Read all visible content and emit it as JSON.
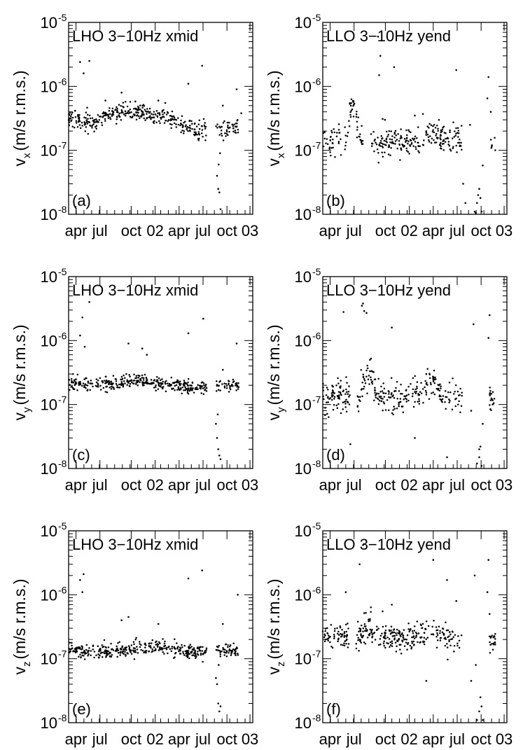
{
  "figure": {
    "x_tick_labels": [
      "apr",
      "jul",
      "oct",
      "02",
      "apr",
      "jul",
      "oct",
      "03"
    ],
    "y_tick_base": "10",
    "y_tick_exponents": [
      "-8",
      "-7",
      "-6",
      "-5"
    ],
    "y_label_main": "v",
    "y_label_units": "(m/s r.m.s.)",
    "colors": {
      "points": "#000000",
      "axes": "#000000",
      "background": "#ffffff"
    }
  },
  "chart_data": [
    {
      "panel": "(a)",
      "type": "scatter",
      "title": "LHO 3−10Hz xmid",
      "component": "x",
      "ylabel": "v_x (m/s r.m.s.)",
      "yscale": "log",
      "ylim": [
        1e-08,
        1e-05
      ],
      "xlabel_ticks": [
        "apr",
        "jul",
        "oct",
        "02",
        "apr",
        "jul",
        "oct",
        "03"
      ],
      "xlim": [
        0,
        8
      ],
      "baseline": [
        [
          0.0,
          3.1e-07
        ],
        [
          0.7,
          2.8e-07
        ],
        [
          1.1,
          2.7e-07
        ],
        [
          1.5,
          3.5e-07
        ],
        [
          2.0,
          4e-07
        ],
        [
          2.5,
          4e-07
        ],
        [
          3.0,
          3.8e-07
        ],
        [
          3.5,
          3.7e-07
        ],
        [
          4.0,
          3.4e-07
        ],
        [
          4.5,
          3e-07
        ],
        [
          5.0,
          2.4e-07
        ],
        [
          5.5,
          2.1e-07
        ],
        [
          6.0,
          2.05e-07
        ],
        [
          6.4,
          2.2e-07
        ],
        [
          7.0,
          2.2e-07
        ],
        [
          7.4,
          2.3e-07
        ]
      ],
      "gaps": [
        [
          6.0,
          6.4
        ]
      ],
      "scatter_factor": 1.25,
      "outliers": [
        [
          0.5,
          2.4e-06
        ],
        [
          0.65,
          1.6e-06
        ],
        [
          0.9,
          2.5e-06
        ],
        [
          1.6,
          6e-07
        ],
        [
          2.3,
          8e-07
        ],
        [
          2.9,
          5.8e-07
        ],
        [
          3.9,
          6e-07
        ],
        [
          4.2,
          5.5e-07
        ],
        [
          5.2,
          1.1e-06
        ],
        [
          5.8,
          2.1e-06
        ],
        [
          6.45,
          4e-08
        ],
        [
          6.5,
          2.5e-08
        ],
        [
          6.55,
          2.2e-08
        ],
        [
          6.6,
          1.2e-08
        ],
        [
          6.52,
          6e-08
        ],
        [
          6.58,
          9e-08
        ],
        [
          6.7,
          5e-07
        ],
        [
          7.3,
          9e-07
        ],
        [
          7.5,
          3.8e-07
        ]
      ]
    },
    {
      "panel": "(b)",
      "type": "scatter",
      "title": "LLO 3−10Hz yend",
      "component": "x",
      "ylabel": "v_x (m/s r.m.s.)",
      "yscale": "log",
      "ylim": [
        1e-08,
        1e-05
      ],
      "xlabel_ticks": [
        "apr",
        "jul",
        "oct",
        "02",
        "apr",
        "jul",
        "oct",
        "03"
      ],
      "xlim": [
        0,
        8
      ],
      "baseline": [
        [
          0.0,
          1.4e-07
        ],
        [
          0.6,
          1.4e-07
        ],
        [
          1.0,
          1.5e-07
        ],
        [
          1.2,
          4.5e-07
        ],
        [
          1.4,
          5e-07
        ],
        [
          1.6,
          1.5e-07
        ],
        [
          2.5,
          1.3e-07
        ],
        [
          3.0,
          1.3e-07
        ],
        [
          3.5,
          1.3e-07
        ],
        [
          4.0,
          1.4e-07
        ],
        [
          4.3,
          1.6e-07
        ],
        [
          4.6,
          2e-07
        ],
        [
          4.9,
          1.6e-07
        ],
        [
          5.5,
          1.5e-07
        ],
        [
          6.0,
          1.4e-07
        ],
        [
          6.5,
          1.6e-07
        ],
        [
          7.5,
          1.1e-07
        ]
      ],
      "gaps": [
        [
          0.8,
          0.95
        ],
        [
          1.75,
          2.1
        ],
        [
          6.05,
          6.6
        ],
        [
          6.6,
          7.3
        ]
      ],
      "scatter_factor": 1.5,
      "outliers": [
        [
          2.4,
          6e-06
        ],
        [
          2.5,
          3e-06
        ],
        [
          2.45,
          1.5e-06
        ],
        [
          2.6,
          3.1e-07
        ],
        [
          2.7,
          3e-07
        ],
        [
          3.1,
          2e-06
        ],
        [
          4.0,
          3.5e-07
        ],
        [
          5.8,
          1.8e-06
        ],
        [
          6.4,
          2.5e-07
        ],
        [
          6.6,
          1.1e-08
        ],
        [
          6.65,
          1.05e-08
        ],
        [
          6.7,
          1.5e-08
        ],
        [
          6.75,
          2e-08
        ],
        [
          6.85,
          1.8e-08
        ],
        [
          6.9,
          1.1e-08
        ],
        [
          6.8,
          2.5e-08
        ],
        [
          6.95,
          5.8e-08
        ],
        [
          7.15,
          6.5e-07
        ],
        [
          7.2,
          1.4e-06
        ],
        [
          7.3,
          4e-07
        ],
        [
          7.35,
          1.2e-07
        ],
        [
          6.1,
          3e-08
        ],
        [
          6.2,
          1.5e-08
        ]
      ]
    },
    {
      "panel": "(c)",
      "type": "scatter",
      "title": "LHO 3−10Hz xmid",
      "component": "y",
      "ylabel": "v_y (m/s r.m.s.)",
      "yscale": "log",
      "ylim": [
        1e-08,
        1e-05
      ],
      "xlabel_ticks": [
        "apr",
        "jul",
        "oct",
        "02",
        "apr",
        "jul",
        "oct",
        "03"
      ],
      "xlim": [
        0,
        8
      ],
      "baseline": [
        [
          0.0,
          2.2e-07
        ],
        [
          0.5,
          2.1e-07
        ],
        [
          1.0,
          2e-07
        ],
        [
          1.5,
          2.1e-07
        ],
        [
          2.0,
          2.2e-07
        ],
        [
          2.5,
          2.3e-07
        ],
        [
          3.0,
          2.4e-07
        ],
        [
          3.5,
          2.3e-07
        ],
        [
          4.0,
          2.1e-07
        ],
        [
          4.5,
          2e-07
        ],
        [
          5.0,
          1.9e-07
        ],
        [
          5.5,
          1.8e-07
        ],
        [
          6.0,
          1.8e-07
        ],
        [
          6.4,
          2e-07
        ],
        [
          7.0,
          2e-07
        ],
        [
          7.4,
          1.9e-07
        ]
      ],
      "gaps": [
        [
          6.0,
          6.35
        ]
      ],
      "scatter_factor": 1.2,
      "outliers": [
        [
          0.5,
          1.2e-06
        ],
        [
          0.6,
          2.3e-06
        ],
        [
          0.9,
          4e-06
        ],
        [
          0.7,
          8e-07
        ],
        [
          2.6,
          9e-07
        ],
        [
          3.2,
          7.5e-07
        ],
        [
          3.4,
          6e-07
        ],
        [
          5.2,
          1.3e-06
        ],
        [
          5.85,
          2.2e-06
        ],
        [
          6.4,
          5e-08
        ],
        [
          6.45,
          3e-08
        ],
        [
          6.5,
          2e-08
        ],
        [
          6.55,
          1.6e-08
        ],
        [
          6.6,
          1.4e-08
        ],
        [
          6.48,
          7e-08
        ],
        [
          7.3,
          9e-07
        ],
        [
          6.7,
          3.5e-07
        ]
      ]
    },
    {
      "panel": "(d)",
      "type": "scatter",
      "title": "LLO 3−10Hz yend",
      "component": "y",
      "ylabel": "v_y (m/s r.m.s.)",
      "yscale": "log",
      "ylim": [
        1e-08,
        1e-05
      ],
      "xlabel_ticks": [
        "apr",
        "jul",
        "oct",
        "02",
        "apr",
        "jul",
        "oct",
        "03"
      ],
      "xlim": [
        0,
        8
      ],
      "baseline": [
        [
          0.0,
          1.3e-07
        ],
        [
          0.5,
          1.4e-07
        ],
        [
          1.0,
          1.3e-07
        ],
        [
          1.5,
          1.2e-07
        ],
        [
          1.9,
          2.5e-07
        ],
        [
          2.1,
          3.5e-07
        ],
        [
          2.3,
          1.5e-07
        ],
        [
          2.8,
          1.2e-07
        ],
        [
          3.5,
          1.3e-07
        ],
        [
          4.0,
          1.4e-07
        ],
        [
          4.5,
          1.8e-07
        ],
        [
          4.8,
          2.4e-07
        ],
        [
          5.0,
          1.7e-07
        ],
        [
          5.5,
          1.4e-07
        ],
        [
          6.0,
          1.4e-07
        ],
        [
          6.5,
          1.5e-07
        ],
        [
          7.5,
          1.2e-07
        ]
      ],
      "gaps": [
        [
          1.2,
          1.5
        ],
        [
          6.05,
          6.6
        ],
        [
          6.6,
          7.25
        ]
      ],
      "scatter_factor": 1.5,
      "outliers": [
        [
          0.9,
          2.8e-06
        ],
        [
          1.2,
          2.4e-08
        ],
        [
          1.7,
          3.5e-06
        ],
        [
          1.8,
          2.9e-06
        ],
        [
          1.9,
          2.7e-06
        ],
        [
          1.75,
          3.8e-06
        ],
        [
          2.05,
          5e-07
        ],
        [
          3.0,
          1.6e-06
        ],
        [
          4.0,
          3e-08
        ],
        [
          4.5,
          3e-07
        ],
        [
          5.4,
          1.5e-08
        ],
        [
          6.55,
          1.8e-06
        ],
        [
          6.65,
          1e-08
        ],
        [
          6.7,
          1.2e-08
        ],
        [
          6.8,
          1.5e-08
        ],
        [
          6.85,
          2.2e-08
        ],
        [
          6.9,
          1.1e-08
        ],
        [
          6.95,
          5e-08
        ],
        [
          7.2,
          1.1e-06
        ],
        [
          7.25,
          2.5e-06
        ],
        [
          6.8,
          2e-08
        ],
        [
          6.45,
          8e-08
        ]
      ]
    },
    {
      "panel": "(e)",
      "type": "scatter",
      "title": "LHO 3−10Hz xmid",
      "component": "z",
      "ylabel": "v_z (m/s r.m.s.)",
      "yscale": "log",
      "ylim": [
        1e-08,
        1e-05
      ],
      "xlabel_ticks": [
        "apr",
        "jul",
        "oct",
        "02",
        "apr",
        "jul",
        "oct",
        "03"
      ],
      "xlim": [
        0,
        8
      ],
      "baseline": [
        [
          0.0,
          1.4e-07
        ],
        [
          0.5,
          1.3e-07
        ],
        [
          1.0,
          1.3e-07
        ],
        [
          1.5,
          1.3e-07
        ],
        [
          2.0,
          1.3e-07
        ],
        [
          2.5,
          1.4e-07
        ],
        [
          3.0,
          1.5e-07
        ],
        [
          3.5,
          1.5e-07
        ],
        [
          4.0,
          1.5e-07
        ],
        [
          4.5,
          1.4e-07
        ],
        [
          5.0,
          1.35e-07
        ],
        [
          5.5,
          1.3e-07
        ],
        [
          6.0,
          1.25e-07
        ],
        [
          6.4,
          1.3e-07
        ],
        [
          7.0,
          1.4e-07
        ],
        [
          7.4,
          1.3e-07
        ]
      ],
      "gaps": [
        [
          6.0,
          6.35
        ]
      ],
      "scatter_factor": 1.2,
      "outliers": [
        [
          0.5,
          1.7e-06
        ],
        [
          0.65,
          2.1e-06
        ],
        [
          0.6,
          1.1e-06
        ],
        [
          2.3,
          4e-07
        ],
        [
          2.6,
          4.5e-07
        ],
        [
          3.9,
          3.5e-07
        ],
        [
          5.2,
          1.8e-06
        ],
        [
          5.8,
          2.4e-06
        ],
        [
          6.4,
          5e-08
        ],
        [
          6.45,
          4e-08
        ],
        [
          6.5,
          2e-08
        ],
        [
          6.55,
          1.5e-08
        ],
        [
          6.6,
          1.8e-08
        ],
        [
          6.52,
          8e-08
        ],
        [
          7.35,
          1e-06
        ],
        [
          6.7,
          3.5e-07
        ]
      ]
    },
    {
      "panel": "(f)",
      "type": "scatter",
      "title": "LLO 3−10Hz yend",
      "component": "z",
      "ylabel": "v_z (m/s r.m.s.)",
      "yscale": "log",
      "ylim": [
        1e-08,
        1e-05
      ],
      "xlabel_ticks": [
        "apr",
        "jul",
        "oct",
        "02",
        "apr",
        "jul",
        "oct",
        "03"
      ],
      "xlim": [
        0,
        8
      ],
      "baseline": [
        [
          0.0,
          2.4e-07
        ],
        [
          0.5,
          2.3e-07
        ],
        [
          1.0,
          2.2e-07
        ],
        [
          1.5,
          2e-07
        ],
        [
          2.0,
          3e-07
        ],
        [
          2.3,
          2.6e-07
        ],
        [
          2.8,
          2e-07
        ],
        [
          3.3,
          2e-07
        ],
        [
          3.8,
          2.2e-07
        ],
        [
          4.3,
          2.6e-07
        ],
        [
          4.7,
          3.3e-07
        ],
        [
          5.0,
          2.5e-07
        ],
        [
          5.5,
          2.2e-07
        ],
        [
          6.0,
          2.2e-07
        ],
        [
          6.5,
          2.4e-07
        ],
        [
          7.5,
          2e-07
        ]
      ],
      "gaps": [
        [
          1.15,
          1.45
        ],
        [
          6.05,
          6.6
        ],
        [
          6.6,
          7.2
        ]
      ],
      "scatter_factor": 1.4,
      "outliers": [
        [
          1.0,
          1.1e-06
        ],
        [
          1.6,
          3e-06
        ],
        [
          1.75,
          6e-06
        ],
        [
          2.6,
          5.5e-07
        ],
        [
          3.0,
          7e-07
        ],
        [
          3.8,
          1.6e-07
        ],
        [
          4.5,
          4.5e-08
        ],
        [
          4.8,
          3.5e-06
        ],
        [
          5.4,
          1.7e-06
        ],
        [
          5.7,
          1.3e-07
        ],
        [
          5.8,
          8e-07
        ],
        [
          6.6,
          2e-06
        ],
        [
          6.7,
          1.1e-08
        ],
        [
          6.75,
          1e-08
        ],
        [
          6.8,
          1.5e-08
        ],
        [
          6.85,
          2.5e-08
        ],
        [
          6.9,
          1.8e-08
        ],
        [
          6.95,
          1.1e-08
        ],
        [
          6.45,
          4.5e-08
        ],
        [
          7.15,
          1.1e-06
        ],
        [
          7.2,
          3.5e-06
        ],
        [
          7.25,
          5e-07
        ],
        [
          6.65,
          8e-08
        ]
      ]
    }
  ]
}
